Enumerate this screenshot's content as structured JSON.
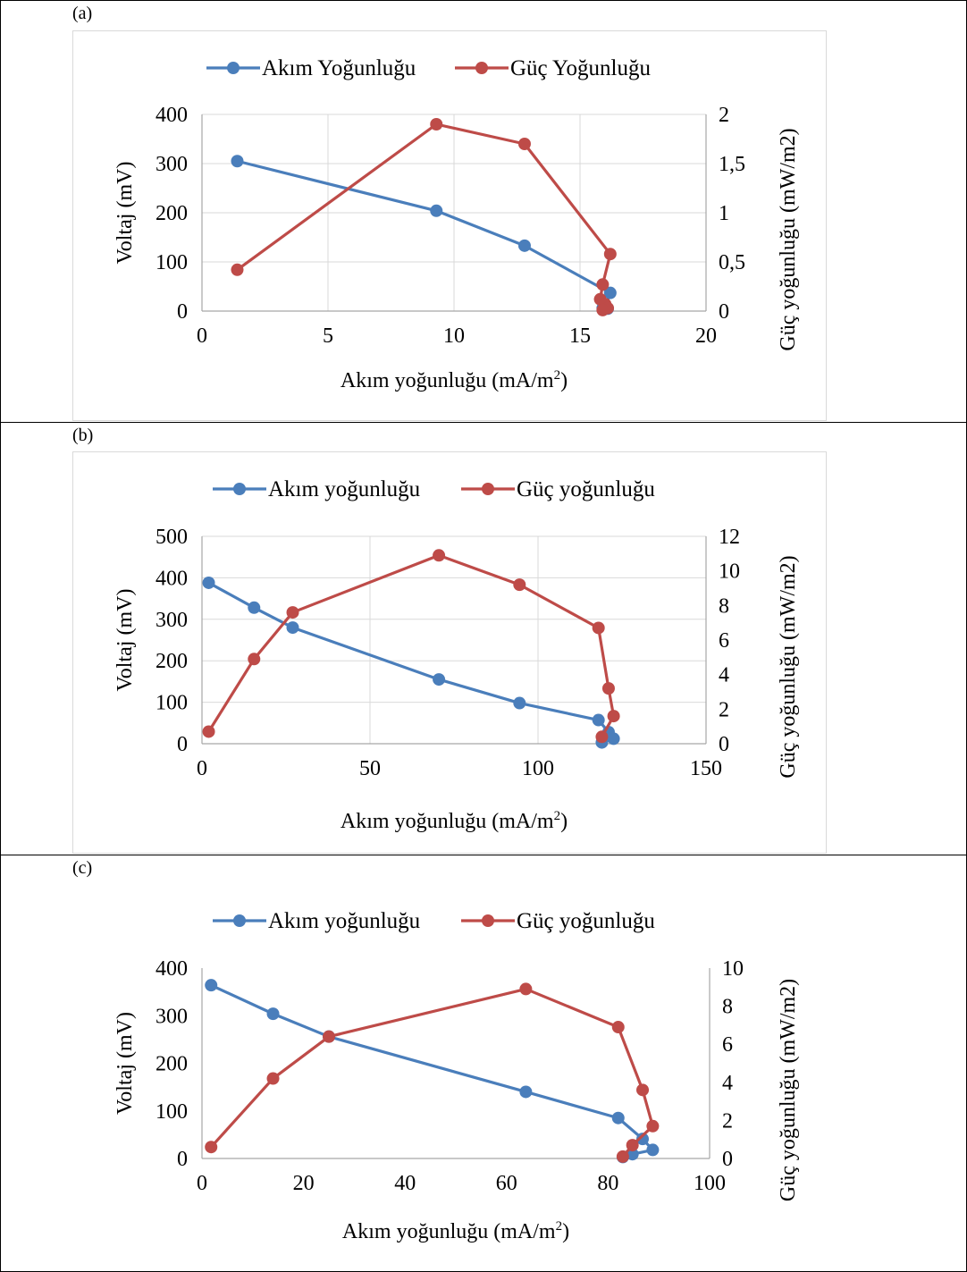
{
  "colors": {
    "blue": "#4a7ebb",
    "red": "#be4b48",
    "grid": "#d9d9d9"
  },
  "panels": [
    {
      "label": "(a)",
      "chart_data": {
        "type": "scatter",
        "legend": [
          "Akım Yoğunluğu",
          "Güç Yoğunluğu"
        ],
        "legend_position": "top",
        "xlabel": "Akım yoğunluğu (mA/m2)",
        "ylabel": "Voltaj (mV)",
        "y2label": "Güç yoğunluğu (mW/m2)",
        "xlim": [
          0,
          20
        ],
        "xticks": [
          0,
          5,
          10,
          15,
          20
        ],
        "ylim": [
          0,
          400
        ],
        "yticks": [
          0,
          100,
          200,
          300,
          400
        ],
        "y2lim": [
          0,
          2
        ],
        "y2ticks": [
          "0",
          "0,5",
          "1",
          "1,5",
          "2"
        ],
        "y2tickvalues": [
          0,
          0.5,
          1,
          1.5,
          2
        ],
        "grid": true,
        "series": [
          {
            "name": "Akım Yoğunluğu",
            "axis": "left",
            "color": "#4a7ebb",
            "x": [
              1.4,
              9.3,
              12.8,
              16.2,
              16.0,
              15.9,
              16.1
            ],
            "y": [
              305,
              204,
              133,
              37,
              9,
              6,
              5
            ]
          },
          {
            "name": "Güç Yoğunluğu",
            "axis": "right",
            "color": "#be4b48",
            "x": [
              1.4,
              9.3,
              12.8,
              16.2,
              15.9,
              15.8,
              16.0,
              16.1,
              15.9
            ],
            "y": [
              0.42,
              1.9,
              1.7,
              0.58,
              0.27,
              0.12,
              0.07,
              0.03,
              0.01
            ]
          }
        ]
      }
    },
    {
      "label": "(b)",
      "chart_data": {
        "type": "scatter",
        "legend": [
          "Akım yoğunluğu",
          "Güç yoğunluğu"
        ],
        "legend_position": "top",
        "xlabel": "Akım yoğunluğu (mA/m2)",
        "ylabel": "Voltaj (mV)",
        "y2label": "Güç yoğunluğu (mW/m2)",
        "xlim": [
          0,
          150
        ],
        "xticks": [
          0,
          50,
          100,
          150
        ],
        "ylim": [
          0,
          500
        ],
        "yticks": [
          0,
          100,
          200,
          300,
          400,
          500
        ],
        "y2lim": [
          0,
          12
        ],
        "y2ticks": [
          "0",
          "2",
          "4",
          "6",
          "8",
          "10",
          "12"
        ],
        "y2tickvalues": [
          0,
          2,
          4,
          6,
          8,
          10,
          12
        ],
        "grid": true,
        "series": [
          {
            "name": "Akım yoğunluğu",
            "axis": "left",
            "color": "#4a7ebb",
            "x": [
              2,
              15.5,
              27,
              70.5,
              94.5,
              118,
              121,
              122.5,
              119
            ],
            "y": [
              388,
              328,
              280,
              155,
              98,
              57,
              28,
              12,
              3
            ]
          },
          {
            "name": "Güç yoğunluğu",
            "axis": "right",
            "color": "#be4b48",
            "x": [
              2,
              15.5,
              27,
              70.5,
              94.5,
              118,
              121,
              122.5,
              119
            ],
            "y": [
              0.7,
              4.9,
              7.6,
              10.9,
              9.2,
              6.7,
              3.2,
              1.6,
              0.4
            ]
          }
        ]
      }
    },
    {
      "label": "(c)",
      "chart_data": {
        "type": "scatter",
        "legend": [
          "Akım yoğunluğu",
          "Güç yoğunluğu"
        ],
        "legend_position": "top",
        "xlabel": "Akım yoğunluğu (mA/m2)",
        "ylabel": "Voltaj (mV)",
        "y2label": "Güç yoğunluğu (mW/m2)",
        "xlim": [
          0,
          100
        ],
        "xticks": [
          0,
          20,
          40,
          60,
          80,
          100
        ],
        "ylim": [
          0,
          400
        ],
        "yticks": [
          0,
          100,
          200,
          300,
          400
        ],
        "y2lim": [
          0,
          10
        ],
        "y2ticks": [
          "0",
          "2",
          "4",
          "6",
          "8",
          "10"
        ],
        "y2tickvalues": [
          0,
          2,
          4,
          6,
          8,
          10
        ],
        "grid": false,
        "series": [
          {
            "name": "Akım yoğunluğu",
            "axis": "left",
            "color": "#4a7ebb",
            "x": [
              1.8,
              14,
              25,
              63.8,
              82,
              86.8,
              88.8,
              84.8,
              82.9
            ],
            "y": [
              364,
              304,
              256,
              140,
              85,
              41,
              18,
              9,
              3
            ]
          },
          {
            "name": "Güç yoğunluğu",
            "axis": "right",
            "color": "#be4b48",
            "x": [
              1.8,
              14,
              25,
              63.8,
              82,
              86.8,
              88.8,
              84.8,
              82.9
            ],
            "y": [
              0.6,
              4.2,
              6.4,
              8.9,
              6.9,
              3.6,
              1.7,
              0.7,
              0.1
            ]
          }
        ]
      }
    }
  ]
}
